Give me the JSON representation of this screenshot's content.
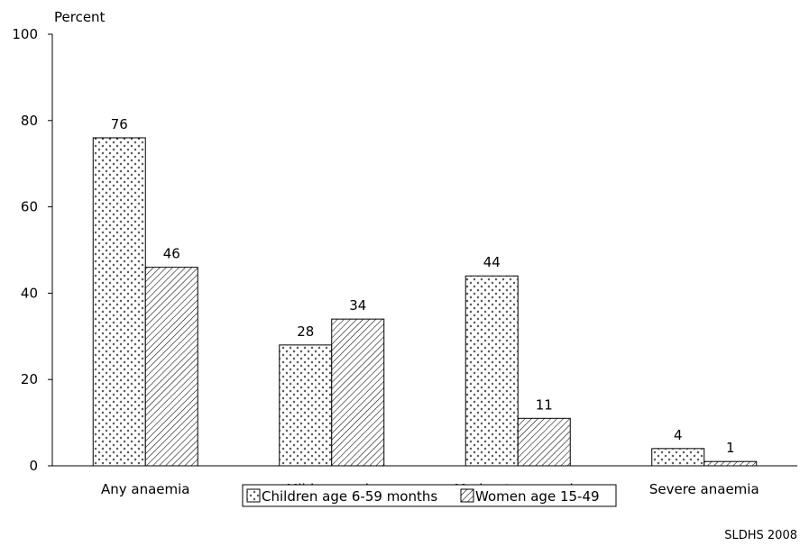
{
  "chart_data": {
    "type": "bar",
    "ylabel": "Percent",
    "ylim": [
      0,
      100
    ],
    "yticks": [
      0,
      20,
      40,
      60,
      80,
      100
    ],
    "categories": [
      "Any anaemia",
      "Mild anaemia",
      "Moderate anaemia",
      "Severe anaemia"
    ],
    "series": [
      {
        "name": "Children age 6-59 months",
        "values": [
          76,
          28,
          44,
          4
        ],
        "pattern": "dots"
      },
      {
        "name": "Women age 15-49",
        "values": [
          46,
          34,
          11,
          1
        ],
        "pattern": "diagonal"
      }
    ],
    "grid": false,
    "legend_position": "bottom-center"
  },
  "source_note": "SLDHS 2008"
}
